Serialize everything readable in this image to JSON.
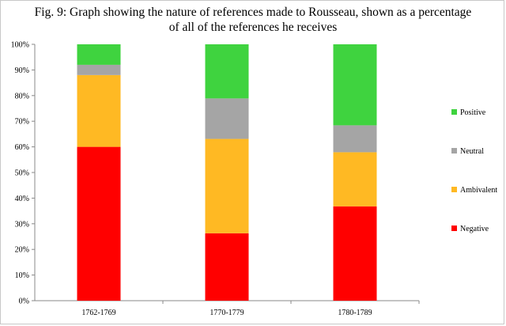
{
  "chart_data": {
    "type": "bar",
    "stacked": true,
    "title_line1": "Fig. 9: Graph showing the nature of references made to Rousseau, shown as a percentage",
    "title_line2": "of all of the references he receives",
    "categories": [
      "1762-1769",
      "1770-1779",
      "1780-1789"
    ],
    "series": [
      {
        "name": "Negative",
        "color": "#ff0000",
        "values": [
          60,
          26.3,
          36.8
        ]
      },
      {
        "name": "Ambivalent",
        "color": "#ffb923",
        "values": [
          28,
          36.8,
          21.1
        ]
      },
      {
        "name": "Neutral",
        "color": "#a5a5a5",
        "values": [
          4,
          15.8,
          10.5
        ]
      },
      {
        "name": "Positive",
        "color": "#3fd33f",
        "values": [
          8,
          21.1,
          31.6
        ]
      }
    ],
    "ylim": [
      0,
      100
    ],
    "yticks": [
      "0%",
      "10%",
      "20%",
      "30%",
      "40%",
      "50%",
      "60%",
      "70%",
      "80%",
      "90%",
      "100%"
    ],
    "legend_order": [
      "Positive",
      "Neutral",
      "Ambivalent",
      "Negative"
    ],
    "legend_position": "right",
    "grid": false
  }
}
